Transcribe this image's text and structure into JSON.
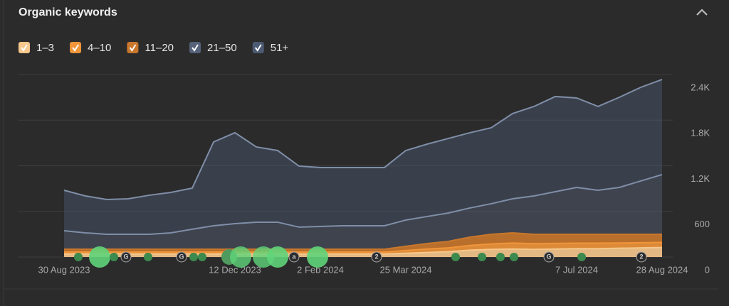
{
  "chart_data": {
    "type": "area",
    "title": "Organic keywords",
    "categories": [
      "30 Aug 2023",
      null,
      null,
      null,
      null,
      null,
      null,
      null,
      "12 Dec 2023",
      null,
      null,
      null,
      "2 Feb 2024",
      null,
      null,
      null,
      "25 Mar 2024",
      null,
      null,
      null,
      null,
      null,
      null,
      null,
      "7 Jul 2024",
      null,
      null,
      null,
      "28 Aug 2024"
    ],
    "series": [
      {
        "name": "1–3",
        "color": "#f7c88c",
        "values": [
          40,
          40,
          40,
          40,
          40,
          40,
          40,
          40,
          40,
          40,
          40,
          40,
          40,
          40,
          40,
          40,
          50,
          60,
          70,
          90,
          100,
          105,
          100,
          105,
          110,
          110,
          115,
          120,
          125
        ]
      },
      {
        "name": "4–10",
        "color": "#f0953a",
        "values": [
          25,
          25,
          25,
          25,
          25,
          25,
          25,
          25,
          25,
          25,
          25,
          25,
          25,
          25,
          25,
          25,
          35,
          45,
          50,
          62,
          72,
          78,
          75,
          74,
          72,
          72,
          70,
          68,
          66
        ]
      },
      {
        "name": "11–20",
        "color": "#c9772c",
        "values": [
          38,
          38,
          38,
          38,
          38,
          38,
          38,
          38,
          38,
          38,
          38,
          38,
          38,
          38,
          38,
          38,
          56,
          73,
          86,
          110,
          127,
          135,
          124,
          120,
          117,
          117,
          114,
          111,
          108
        ]
      },
      {
        "name": "21–50",
        "color": "#56627a",
        "values": [
          243,
          215,
          196,
          196,
          196,
          215,
          262,
          308,
          336,
          355,
          355,
          290,
          299,
          308,
          308,
          308,
          345,
          355,
          373,
          383,
          402,
          448,
          504,
          560,
          616,
          579,
          616,
          701,
          785
        ]
      },
      {
        "name": "51+",
        "color": "#4d5a73",
        "values": [
          532,
          485,
          458,
          467,
          514,
          532,
          541,
          1102,
          1196,
          990,
          943,
          803,
          775,
          766,
          766,
          766,
          915,
          952,
          981,
          990,
          999,
          1121,
          1177,
          1252,
          1177,
          1102,
          1186,
          1232,
          1251
        ]
      }
    ],
    "ylim": [
      0,
      2400
    ],
    "yticks": [
      0,
      600,
      {
        "value": 1200,
        "label": "1.2K"
      },
      {
        "value": 1800,
        "label": "1.8K"
      },
      {
        "value": 2400,
        "label": "2.4K"
      }
    ],
    "grid": true,
    "annotations": [
      "G",
      "G",
      "a",
      "2",
      "G",
      "2"
    ]
  }
}
